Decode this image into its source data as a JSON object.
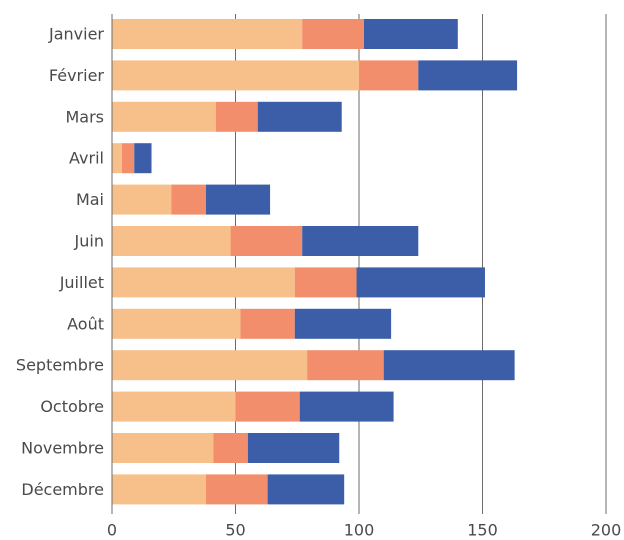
{
  "chart_data": {
    "type": "bar",
    "orientation": "horizontal",
    "stacked": true,
    "title": "",
    "xlabel": "",
    "ylabel": "",
    "xlim": [
      0,
      200
    ],
    "x_ticks": [
      0,
      50,
      100,
      150,
      200
    ],
    "grid": "vertical",
    "legend": "none",
    "categories": [
      "Janvier",
      "Février",
      "Mars",
      "Avril",
      "Mai",
      "Juin",
      "Juillet",
      "Août",
      "Septembre",
      "Octobre",
      "Novembre",
      "Décembre"
    ],
    "series": [
      {
        "color": "#f7c08a",
        "values": [
          77,
          100,
          42,
          4,
          24,
          48,
          74,
          52,
          79,
          50,
          41,
          38
        ]
      },
      {
        "color": "#f28e6b",
        "values": [
          25,
          24,
          17,
          5,
          14,
          29,
          25,
          22,
          31,
          26,
          14,
          25
        ]
      },
      {
        "color": "#3c5ea8",
        "values": [
          38,
          40,
          34,
          7,
          26,
          47,
          52,
          39,
          53,
          38,
          37,
          31
        ]
      }
    ]
  }
}
